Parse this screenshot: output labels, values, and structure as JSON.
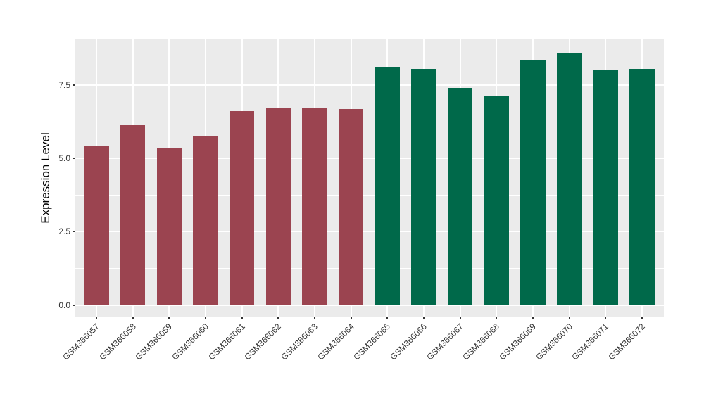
{
  "chart_data": {
    "type": "bar",
    "title": "",
    "xlabel": "",
    "ylabel": "Expression Level",
    "categories": [
      "GSM366057",
      "GSM366058",
      "GSM366059",
      "GSM366060",
      "GSM366061",
      "GSM366062",
      "GSM366063",
      "GSM366064",
      "GSM366065",
      "GSM366066",
      "GSM366067",
      "GSM366068",
      "GSM366069",
      "GSM366070",
      "GSM366071",
      "GSM366072"
    ],
    "values": [
      5.42,
      6.13,
      5.35,
      5.76,
      6.62,
      6.71,
      6.75,
      6.68,
      8.13,
      8.05,
      7.41,
      7.13,
      8.38,
      8.6,
      8.02,
      8.05
    ],
    "bar_colors": [
      "#9B4450",
      "#9B4450",
      "#9B4450",
      "#9B4450",
      "#9B4450",
      "#9B4450",
      "#9B4450",
      "#9B4450",
      "#00694A",
      "#00694A",
      "#00694A",
      "#00694A",
      "#00694A",
      "#00694A",
      "#00694A",
      "#00694A"
    ],
    "ylim": [
      0,
      9.07
    ],
    "yticks": [
      {
        "value": 0,
        "label": "0.0"
      },
      {
        "value": 2.5,
        "label": "2.5"
      },
      {
        "value": 5,
        "label": "5.0"
      },
      {
        "value": 7.5,
        "label": "7.5"
      }
    ],
    "minor_gridlines": [
      1.25,
      3.75,
      6.25,
      8.75
    ],
    "grid": true,
    "legend": "none",
    "panel_bg": "#EBEBEB",
    "grid_color": "#FFFFFF",
    "axis_text_color": "#333333",
    "bar_width_fraction": 0.68,
    "x_label_angle_deg": 45
  }
}
